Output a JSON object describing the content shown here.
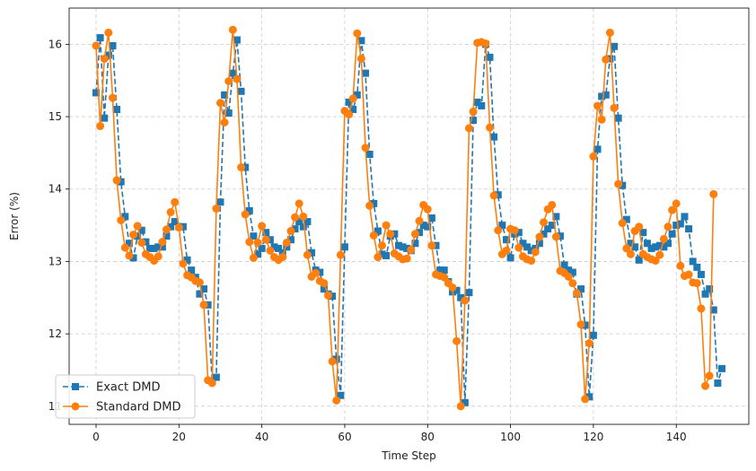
{
  "chart_data": {
    "type": "line",
    "title": "",
    "xlabel": "Time Step",
    "ylabel": "Error (%)",
    "xlim": [
      -6.5,
      157.5
    ],
    "ylim": [
      10.75,
      16.5
    ],
    "xticks": [
      0,
      20,
      40,
      60,
      80,
      100,
      120,
      140
    ],
    "yticks": [
      11,
      12,
      13,
      14,
      15,
      16
    ],
    "grid": true,
    "legend": "lower-left",
    "colors": {
      "exact": "#1f77b4",
      "standard": "#ff7f0e",
      "grid": "#cccccc"
    },
    "series": [
      {
        "name": "Exact DMD",
        "style": "dashed-square",
        "x_start": 0,
        "values": [
          15.33,
          16.09,
          14.98,
          15.85,
          15.98,
          15.1,
          14.1,
          13.62,
          13.25,
          13.05,
          13.35,
          13.43,
          13.27,
          13.18,
          13.18,
          13.2,
          13.2,
          13.35,
          13.48,
          13.55,
          13.48,
          13.48,
          13.02,
          12.88,
          12.78,
          12.55,
          12.62,
          12.4,
          11.35,
          11.4,
          13.82,
          15.3,
          15.05,
          15.6,
          16.06,
          15.35,
          14.3,
          13.7,
          13.35,
          13.1,
          13.18,
          13.4,
          13.3,
          13.2,
          13.18,
          13.12,
          13.2,
          13.3,
          13.45,
          13.55,
          13.48,
          13.55,
          13.12,
          12.88,
          12.85,
          12.62,
          12.55,
          12.52,
          11.65,
          11.15,
          13.2,
          15.2,
          15.1,
          15.3,
          16.05,
          15.6,
          14.48,
          13.8,
          13.42,
          13.1,
          13.08,
          13.35,
          13.38,
          13.22,
          13.2,
          13.18,
          13.15,
          13.25,
          13.4,
          13.5,
          13.48,
          13.6,
          13.22,
          12.88,
          12.88,
          12.72,
          12.58,
          12.6,
          12.5,
          11.05,
          12.57,
          14.95,
          15.2,
          15.15,
          16.0,
          15.82,
          14.72,
          13.92,
          13.5,
          13.3,
          13.05,
          13.38,
          13.4,
          13.25,
          13.2,
          13.15,
          13.18,
          13.25,
          13.38,
          13.45,
          13.5,
          13.62,
          13.35,
          12.95,
          12.88,
          12.85,
          12.55,
          12.62,
          12.12,
          11.13,
          11.98,
          14.55,
          15.28,
          15.3,
          15.8,
          15.97,
          14.98,
          14.05,
          13.58,
          13.25,
          13.2,
          13.02,
          13.4,
          13.25,
          13.18,
          13.2,
          13.22,
          13.2,
          13.25,
          13.38,
          13.5,
          13.52,
          13.62,
          13.45,
          13.0,
          12.92,
          12.82,
          12.55,
          12.62,
          12.33,
          11.32,
          11.52
        ]
      },
      {
        "name": "Standard DMD",
        "style": "solid-circle",
        "x_start": 0,
        "values": [
          15.98,
          14.87,
          15.8,
          16.16,
          15.26,
          14.12,
          13.57,
          13.19,
          13.08,
          13.37,
          13.49,
          13.26,
          13.1,
          13.06,
          13.01,
          13.07,
          13.27,
          13.44,
          13.68,
          13.82,
          13.47,
          12.97,
          12.81,
          12.78,
          12.73,
          12.71,
          12.4,
          11.36,
          11.32,
          13.73,
          15.19,
          14.92,
          15.49,
          16.2,
          15.52,
          14.3,
          13.65,
          13.27,
          13.05,
          13.26,
          13.49,
          13.3,
          13.15,
          13.06,
          13.02,
          13.06,
          13.26,
          13.42,
          13.61,
          13.8,
          13.62,
          13.09,
          12.79,
          12.84,
          12.73,
          12.7,
          12.53,
          11.62,
          11.08,
          13.09,
          15.08,
          15.03,
          15.25,
          16.15,
          15.8,
          14.57,
          13.77,
          13.36,
          13.06,
          13.22,
          13.5,
          13.38,
          13.11,
          13.07,
          13.03,
          13.04,
          13.16,
          13.38,
          13.56,
          13.78,
          13.72,
          13.22,
          12.82,
          12.8,
          12.78,
          12.7,
          12.64,
          11.9,
          11.0,
          12.46,
          14.84,
          15.07,
          16.02,
          16.03,
          16.01,
          14.85,
          13.91,
          13.43,
          13.1,
          13.15,
          13.45,
          13.43,
          13.19,
          13.07,
          13.03,
          13.01,
          13.13,
          13.34,
          13.54,
          13.72,
          13.78,
          13.34,
          12.87,
          12.84,
          12.79,
          12.7,
          12.56,
          12.13,
          11.1,
          11.87,
          14.45,
          15.15,
          14.96,
          15.79,
          16.16,
          15.12,
          14.07,
          13.53,
          13.18,
          13.1,
          13.42,
          13.48,
          13.1,
          13.06,
          13.03,
          13.01,
          13.09,
          13.31,
          13.48,
          13.71,
          13.8,
          12.94,
          12.8,
          12.82,
          12.71,
          12.7,
          12.35,
          11.28,
          11.42,
          13.93
        ]
      }
    ]
  }
}
